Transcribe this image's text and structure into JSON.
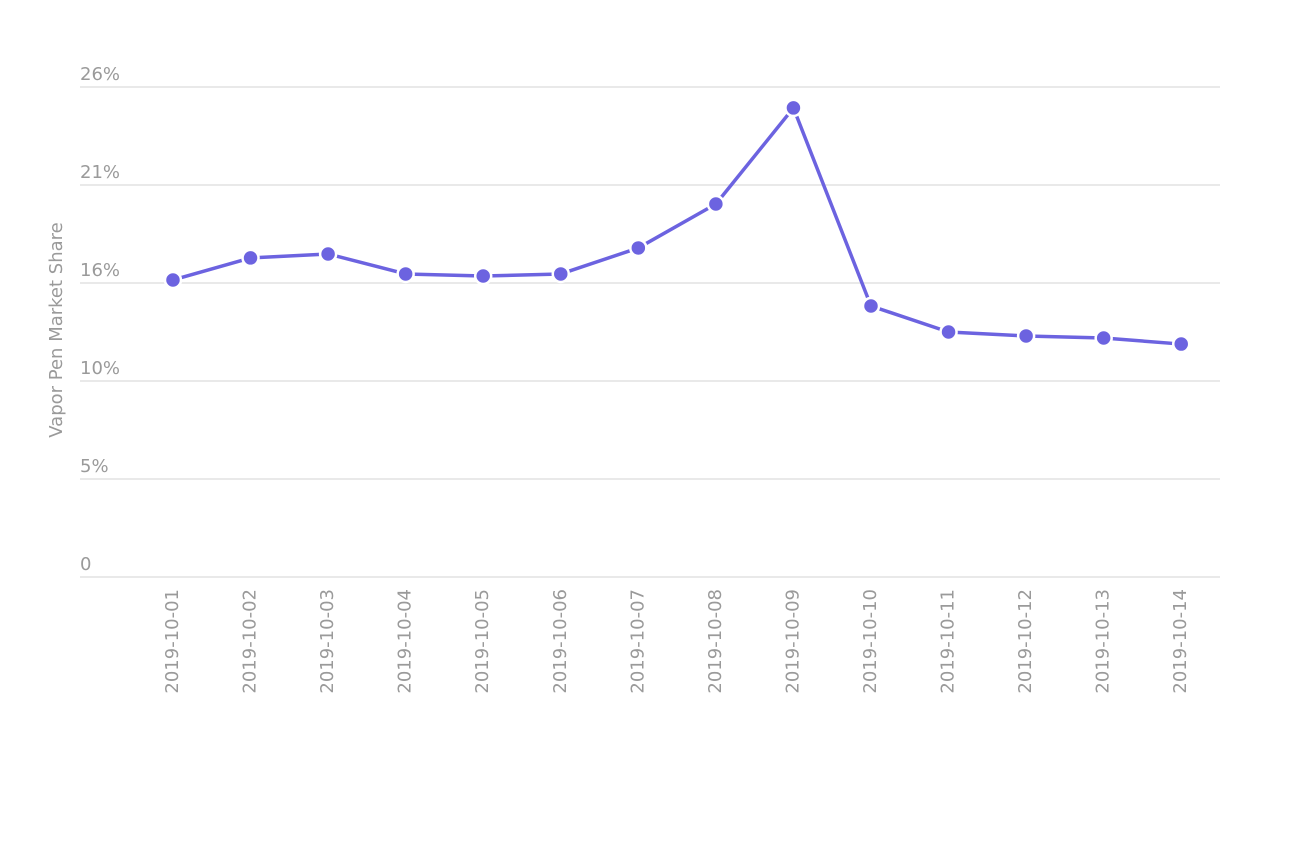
{
  "chart_data": {
    "type": "line",
    "y_label": "Vapor Pen Market Share",
    "categories": [
      "2019-10-01",
      "2019-10-02",
      "2019-10-03",
      "2019-10-04",
      "2019-10-05",
      "2019-10-06",
      "2019-10-07",
      "2019-10-08",
      "2019-10-09",
      "2019-10-10",
      "2019-10-11",
      "2019-10-12",
      "2019-10-13",
      "2019-10-14"
    ],
    "series": [
      {
        "color": "#6c63e0",
        "values": [
          15.76,
          16.93,
          17.14,
          16.08,
          15.97,
          16.08,
          17.46,
          19.79,
          24.89,
          14.38,
          13.0,
          12.79,
          12.68,
          12.36
        ]
      }
    ],
    "ylim": [
      0,
      26
    ],
    "yticks": [
      0,
      {
        "value": 5.2,
        "label": "5%"
      },
      {
        "value": 10.4,
        "label": "10%"
      },
      {
        "value": 15.6,
        "label": "16%"
      },
      {
        "value": 20.8,
        "label": "21%"
      },
      {
        "value": 26,
        "label": "26%"
      }
    ],
    "grid": true
  }
}
